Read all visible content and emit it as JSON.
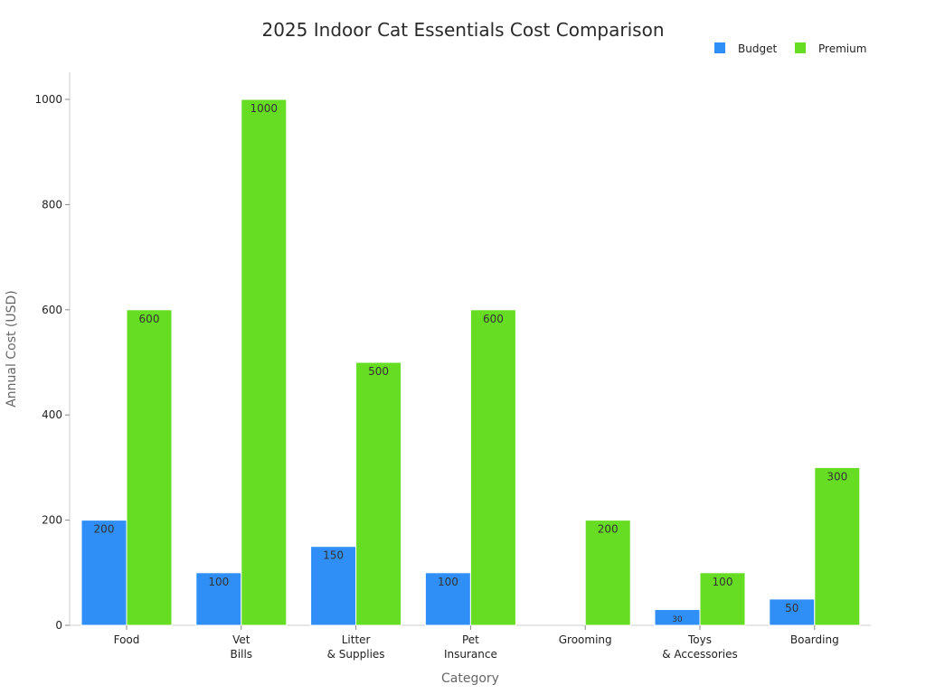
{
  "chart_data": {
    "type": "bar",
    "title": "2025 Indoor Cat Essentials Cost Comparison",
    "xlabel": "Category",
    "ylabel": "Annual Cost (USD)",
    "categories": [
      [
        "Food"
      ],
      [
        "Vet",
        "Bills"
      ],
      [
        "Litter",
        "& Supplies"
      ],
      [
        "Pet",
        "Insurance"
      ],
      [
        "Grooming"
      ],
      [
        "Toys",
        "& Accessories"
      ],
      [
        "Boarding"
      ]
    ],
    "series": [
      {
        "name": "Budget",
        "color": "#2f8ff7",
        "values": [
          200,
          100,
          150,
          100,
          0,
          30,
          50
        ]
      },
      {
        "name": "Premium",
        "color": "#66dd22",
        "values": [
          600,
          1000,
          500,
          600,
          200,
          100,
          300
        ]
      }
    ],
    "ylim": [
      0,
      1050
    ],
    "yticks": [
      "0",
      "200",
      "400",
      "600",
      "800",
      "1000"
    ],
    "legend_position": "top-right",
    "grid": false
  }
}
